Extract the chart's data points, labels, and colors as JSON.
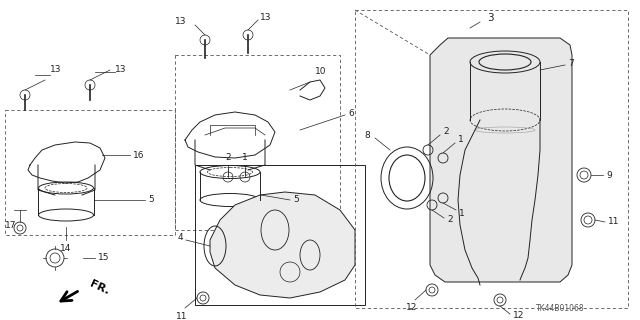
{
  "bg_color": "#ffffff",
  "line_color": "#222222",
  "dash_color": "#555555",
  "label_color": "#000000",
  "footer_text": "TK44B01068",
  "figsize": [
    6.4,
    3.2
  ],
  "dpi": 100
}
